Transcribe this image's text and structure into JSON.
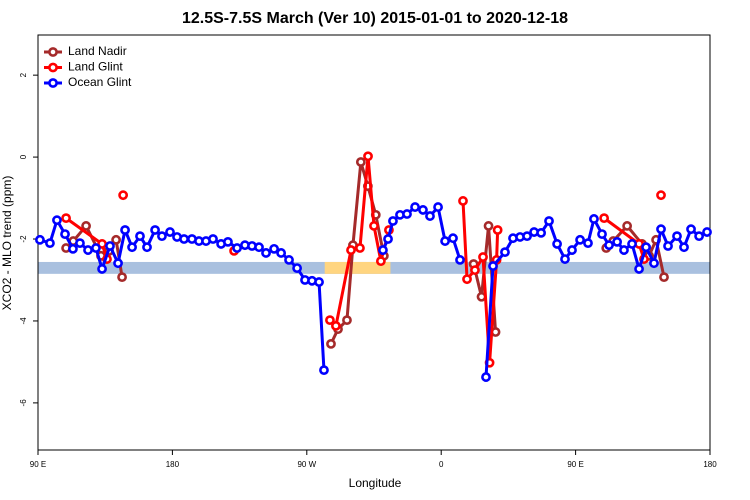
{
  "chart_data": {
    "type": "line",
    "title": "12.5S-7.5S March (Ver 10)   2015-01-01 to 2020-12-18",
    "x_label": "Longitude",
    "y_label": "XCO2 - MLO trend (ppm)",
    "xlim": [
      90,
      540
    ],
    "ylim": [
      -7.15,
      2.98
    ],
    "xticks": [
      {
        "value": 90,
        "label": "90 E"
      },
      180,
      {
        "value": 270,
        "label": "90 W"
      },
      {
        "value": 360,
        "label": "0"
      },
      {
        "value": 450,
        "label": "90 E"
      },
      {
        "value": 540,
        "label": "180"
      }
    ],
    "yticks": [
      2,
      0,
      -2,
      -4,
      -6
    ],
    "legend": "top-left",
    "reference_band": {
      "ylim": [
        -2.85,
        -2.56
      ],
      "color": "#a9c0df"
    },
    "highlight_band": {
      "xlim": [
        282,
        326
      ],
      "color": "#ffd580"
    },
    "series": [
      {
        "name": "Land Nadir",
        "color": "#a52a2a",
        "x": [
          108.8,
          113.6,
          122.2,
          132.2,
          137.6,
          142.3,
          146.3,
          null,
          286.2,
          290.9,
          296.9,
          300.9,
          306.2,
          310.9,
          316.2,
          321.6,
          null,
          381.7,
          387,
          391.7,
          396.4,
          null,
          470.5,
          475.2,
          484.5,
          494.5,
          499.2,
          503.9,
          509.2
        ],
        "values": [
          -2.22,
          -2.05,
          -1.68,
          -2.41,
          -2.29,
          -2.02,
          -2.93,
          null,
          -4.56,
          -4.2,
          -3.98,
          -2.15,
          -0.12,
          -0.71,
          -1.41,
          -2.41,
          null,
          -2.61,
          -3.41,
          -1.68,
          -4.27,
          null,
          -2.22,
          -2.05,
          -1.68,
          -2.12,
          -2.41,
          -2.02,
          -2.93
        ]
      },
      {
        "name": "Land Glint",
        "color": "#ff0000",
        "x": [
          108.8,
          132.9,
          136.2,
          null,
          147,
          null,
          221.3,
          null,
          285.5,
          289.5,
          299.6,
          305.6,
          311,
          315,
          319.6,
          325,
          null,
          374.6,
          377.3,
          382.6,
          388,
          392.4,
          397.1,
          397.8,
          null,
          469.1,
          492.5,
          495.8,
          null,
          507.2
        ],
        "values": [
          -1.49,
          -2.12,
          -2.49,
          null,
          -0.93,
          null,
          -2.29,
          null,
          -3.98,
          -4.12,
          -2.27,
          -2.22,
          0.02,
          -1.68,
          -2.54,
          -1.78,
          null,
          -1.07,
          -2.98,
          -2.76,
          -2.44,
          -5.02,
          -2.51,
          -1.78,
          null,
          -1.49,
          -2.12,
          -2.49,
          null,
          -0.93
        ]
      },
      {
        "name": "Ocean Glint",
        "color": "#0000ff",
        "x": [
          91.3,
          98,
          102.7,
          108.1,
          113.4,
          118.1,
          123.5,
          128.8,
          132.9,
          138.2,
          143.6,
          148.3,
          153,
          158.3,
          163,
          168.4,
          173,
          178.4,
          183.1,
          187.8,
          193.1,
          197.8,
          202.5,
          207.2,
          212.6,
          217.2,
          223.3,
          228.6,
          233.3,
          238,
          242.7,
          248.1,
          252.8,
          258.1,
          263.5,
          268.8,
          273.5,
          278.2,
          281.5,
          null,
          321,
          324.4,
          327.7,
          332.4,
          337.1,
          342.5,
          347.8,
          352.5,
          357.9,
          362.6,
          367.9,
          372.6,
          null,
          390,
          394.7,
          402.7,
          408.1,
          412.8,
          417.5,
          422.2,
          426.9,
          432.2,
          437.6,
          442.9,
          447.6,
          453,
          458.3,
          462.3,
          467.7,
          472.4,
          477.8,
          482.4,
          487.8,
          492.5,
          497.2,
          502.5,
          507.2,
          511.9,
          517.9,
          522.6,
          527.3,
          532.7,
          538
        ],
        "values": [
          -2.02,
          -2.1,
          -1.54,
          -1.88,
          -2.24,
          -2.1,
          -2.27,
          -2.22,
          -2.73,
          -2.17,
          -2.59,
          -1.78,
          -2.2,
          -1.93,
          -2.2,
          -1.78,
          -1.93,
          -1.83,
          -1.95,
          -2.0,
          -2.0,
          -2.05,
          -2.05,
          -2.0,
          -2.12,
          -2.07,
          -2.22,
          -2.15,
          -2.17,
          -2.2,
          -2.34,
          -2.24,
          -2.34,
          -2.51,
          -2.71,
          -3.0,
          -3.02,
          -3.05,
          -5.2,
          null,
          -2.27,
          -2.0,
          -1.56,
          -1.41,
          -1.39,
          -1.22,
          -1.29,
          -1.44,
          -1.22,
          -2.05,
          -1.98,
          -2.51,
          null,
          -5.37,
          -2.66,
          -2.32,
          -1.98,
          -1.95,
          -1.93,
          -1.83,
          -1.85,
          -1.56,
          -2.12,
          -2.49,
          -2.27,
          -2.02,
          -2.1,
          -1.51,
          -1.88,
          -2.15,
          -2.07,
          -2.27,
          -2.12,
          -2.73,
          -2.2,
          -2.59,
          -1.76,
          -2.17,
          -1.93,
          -2.2,
          -1.76,
          -1.93,
          -1.83
        ]
      }
    ]
  }
}
